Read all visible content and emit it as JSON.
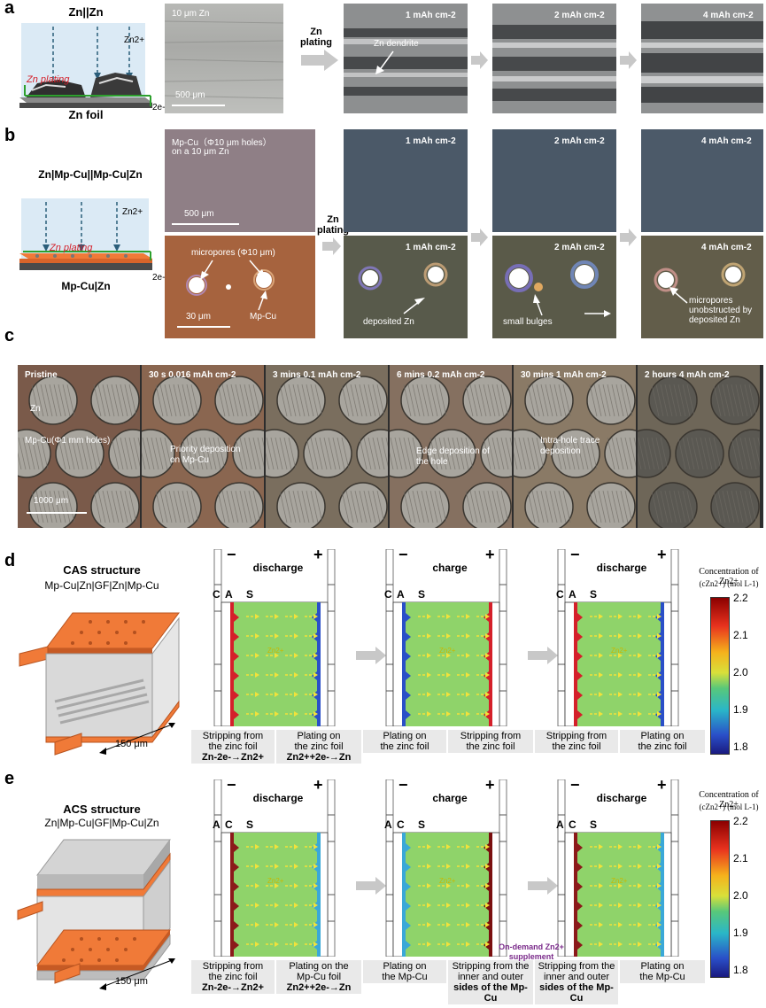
{
  "panel_letters": [
    "a",
    "b",
    "c",
    "d",
    "e"
  ],
  "a": {
    "schematic_title": "Zn||Zn",
    "zn_ion": "Zn2+",
    "plating_text": "Zn plating",
    "foil_label": "Zn foil",
    "electron": "2e-",
    "img0_label": "10 μm Zn",
    "img0_scale": "500 μm",
    "arrow_text": "Zn plating",
    "img1_label": "1 mAh cm-2",
    "img1_annot": "Zn dendrite",
    "img2_label": "2 mAh cm-2",
    "img3_label": "4 mAh cm-2"
  },
  "b": {
    "schematic_title": "Zn|Mp-Cu||Mp-Cu|Zn",
    "zn_ion": "Zn2+",
    "plating_text": "Zn plating",
    "foil_label": "Mp-Cu|Zn",
    "electron": "2e-",
    "top0_label": "Mp-Cu（Φ10 μm holes）",
    "top0_label2": "on a 10 μm Zn",
    "top0_scale": "500 μm",
    "bot0_annot": "micropores (Φ10 μm)",
    "bot0_scale": "30 μm",
    "bot0_annot2": "Mp-Cu",
    "arrow_text": "Zn plating",
    "top1_label": "1 mAh cm-2",
    "top2_label": "2 mAh cm-2",
    "top3_label": "4 mAh cm-2",
    "bot1_label": "1 mAh cm-2",
    "bot1_annot": "deposited Zn",
    "bot2_label": "2 mAh cm-2",
    "bot2_annot": "small bulges",
    "bot3_label": "4 mAh cm-2",
    "bot3_annot": "micropores unobstructed by deposited Zn"
  },
  "c": {
    "frames": [
      {
        "label": "Pristine",
        "annot": "Zn",
        "annot2": "Mp-Cu(Φ1 mm holes)",
        "scale": "1000 μm"
      },
      {
        "label": "30 s  0.016 mAh cm-2",
        "annot": "Priority deposition on Mp-Cu"
      },
      {
        "label": "3 mins  0.1 mAh cm-2"
      },
      {
        "label": "6 mins  0.2 mAh cm-2",
        "annot": "Edge deposition of the hole"
      },
      {
        "label": "30 mins  1 mAh cm-2",
        "annot": "Intra-hole trace deposition"
      },
      {
        "label": "2 hours  4 mAh cm-2"
      }
    ]
  },
  "d": {
    "title": "CAS structure",
    "subtitle": "Mp-Cu|Zn|GF|Zn|Mp-Cu",
    "dimension": "150 μm",
    "layer_labels": [
      "C",
      "A",
      "S"
    ],
    "minus": "−",
    "plus": "+",
    "ion_label": "Zn2+",
    "cells": [
      {
        "mode": "discharge",
        "left": [
          "Stripping from",
          "the zinc foil",
          "Zn-2e-→Zn2+"
        ],
        "right": [
          "Plating on",
          "the zinc foil",
          "Zn2++2e-→Zn"
        ]
      },
      {
        "mode": "charge",
        "left": [
          "Plating on",
          "the zinc foil"
        ],
        "right": [
          "Stripping from",
          "the zinc foil"
        ]
      },
      {
        "mode": "discharge",
        "left": [
          "Stripping from",
          "the zinc foil"
        ],
        "right": [
          "Plating on",
          "the zinc foil"
        ]
      }
    ],
    "colorbar": {
      "title": "Concentration of Zn2+",
      "unit": "(cZn2+) (mol L-1)",
      "ticks": [
        "2.2",
        "2.1",
        "2.0",
        "1.9",
        "1.8"
      ]
    }
  },
  "e": {
    "title": "ACS structure",
    "subtitle": "Zn|Mp-Cu|GF|Mp-Cu|Zn",
    "dimension": "150 μm",
    "layer_labels": [
      "A",
      "C",
      "S"
    ],
    "minus": "−",
    "plus": "+",
    "ion_label": "Zn2+",
    "supplement": [
      "On-demand Zn2+",
      "supplement"
    ],
    "cells": [
      {
        "mode": "discharge",
        "left": [
          "Stripping from",
          "the zinc foil",
          "Zn-2e-→Zn2+"
        ],
        "right": [
          "Plating on the",
          "Mp-Cu foil",
          "Zn2++2e-→Zn"
        ]
      },
      {
        "mode": "charge",
        "left": [
          "Plating on",
          "the Mp-Cu"
        ],
        "right": [
          "Stripping from the",
          "inner and outer",
          "sides of the Mp-Cu"
        ]
      },
      {
        "mode": "discharge",
        "left": [
          "Stripping from the",
          "inner and outer",
          "sides of the Mp-Cu"
        ],
        "right": [
          "Plating on",
          "the Mp-Cu"
        ]
      }
    ],
    "colorbar": {
      "title": "Concentration of Zn2+",
      "unit": "(cZn2+) (mol L-1)",
      "ticks": [
        "2.2",
        "2.1",
        "2.0",
        "1.9",
        "1.8"
      ]
    }
  },
  "colors": {
    "zn_gray": "#6e6e6e",
    "mpcu_orange": "#f07a38",
    "electrolyte_green": "#8fd36a",
    "arrow_gray": "#c8c8c8",
    "plating_red": "#d4202a"
  }
}
